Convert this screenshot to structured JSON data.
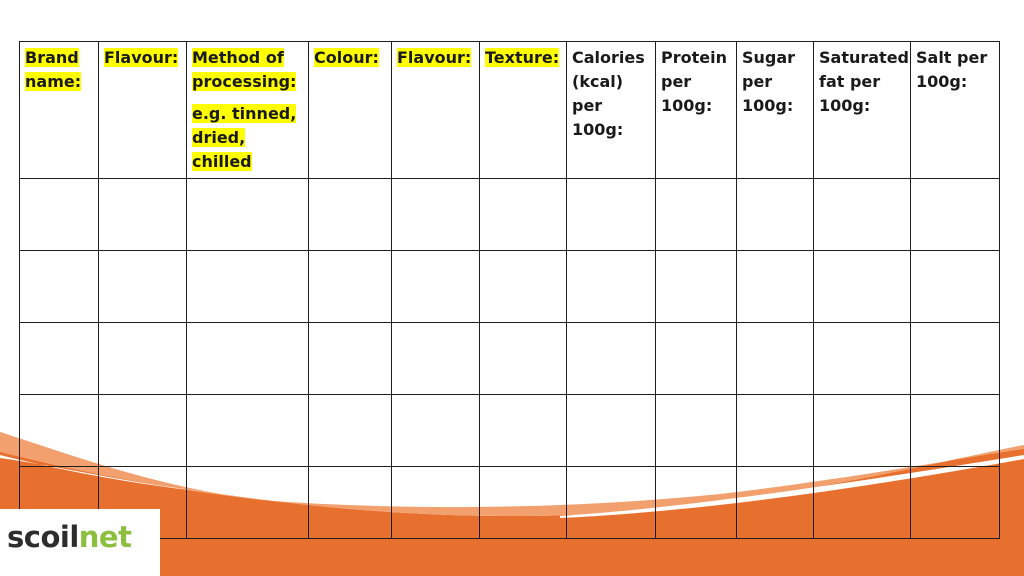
{
  "table": {
    "headers": [
      {
        "text": "Brand name:",
        "highlight": true
      },
      {
        "text": "Flavour:",
        "highlight": true
      },
      {
        "text": "Method of processing:",
        "highlight": true,
        "example": "e.g. tinned, dried, chilled"
      },
      {
        "text": "Colour:",
        "highlight": true
      },
      {
        "text": "Flavour:",
        "highlight": true
      },
      {
        "text": "Texture:",
        "highlight": true
      },
      {
        "text": "Calories (kcal) per 100g:",
        "highlight": false
      },
      {
        "text": "Protein per 100g:",
        "highlight": false
      },
      {
        "text": "Sugar per 100g:",
        "highlight": false
      },
      {
        "text": "Saturated fat per 100g:",
        "highlight": false
      },
      {
        "text": "Salt per 100g:",
        "highlight": false
      }
    ],
    "empty_rows": 5
  },
  "logo": {
    "prefix": "scoil",
    "accent": "net"
  },
  "colors": {
    "highlight": "#ffff00",
    "wave_orange": "#e8702f",
    "wave_light": "#f2a06e",
    "logo_accent": "#8cbf3f",
    "grid_line": "#1e1e1e"
  }
}
